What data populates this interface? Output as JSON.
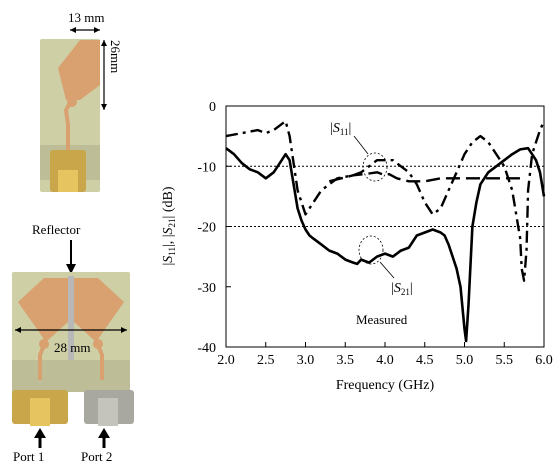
{
  "photos": {
    "top": {
      "width_label": "13 mm",
      "height_label": "26mm"
    },
    "bottom": {
      "reflector_label": "Reflector",
      "width_label": "28 mm",
      "port1_label": "Port 1",
      "port2_label": "Port 2"
    },
    "colors": {
      "substrate": "#cfcfa6",
      "copper": "#d9a070",
      "connector": "#c9a64a"
    }
  },
  "chart_data": {
    "type": "line",
    "xlabel": "Frequency (GHz)",
    "ylabel": "|S11|, |S21| (dB)",
    "xlim": [
      2.0,
      6.0
    ],
    "ylim": [
      -40,
      0
    ],
    "xticks": [
      "2.0",
      "2.5",
      "3.0",
      "3.5",
      "4.0",
      "4.5",
      "5.0",
      "5.5",
      "6.0"
    ],
    "yticks": [
      "0",
      "-10",
      "-20",
      "-30",
      "-40"
    ],
    "reference_lines": [
      -10,
      -20
    ],
    "annotations": {
      "s11": "|S11|",
      "s21": "|S21|",
      "note": "Measured"
    },
    "series": [
      {
        "key": "s21",
        "style": "solid",
        "x": [
          2.0,
          2.1,
          2.2,
          2.3,
          2.4,
          2.5,
          2.6,
          2.65,
          2.7,
          2.75,
          2.8,
          2.85,
          2.9,
          2.95,
          3.0,
          3.05,
          3.1,
          3.2,
          3.3,
          3.4,
          3.5,
          3.6,
          3.65,
          3.7,
          3.8,
          3.9,
          4.0,
          4.1,
          4.2,
          4.3,
          4.4,
          4.5,
          4.6,
          4.7,
          4.75,
          4.8,
          4.85,
          4.9,
          4.95,
          5.0,
          5.02,
          5.05,
          5.08,
          5.1,
          5.15,
          5.2,
          5.3,
          5.4,
          5.5,
          5.6,
          5.7,
          5.8,
          5.85,
          5.9,
          5.95,
          6.0
        ],
        "values": [
          -7,
          -8,
          -9.5,
          -10.5,
          -11,
          -12,
          -11,
          -10,
          -9,
          -8,
          -9,
          -13,
          -17,
          -19,
          -20.5,
          -21.5,
          -22,
          -23,
          -24,
          -24.5,
          -25.5,
          -26,
          -26.2,
          -25.5,
          -26,
          -25,
          -24.5,
          -25,
          -24,
          -23.5,
          -21.5,
          -21,
          -20.5,
          -21,
          -21.5,
          -23,
          -25,
          -27,
          -30,
          -37,
          -39,
          -33,
          -25,
          -20,
          -16,
          -13,
          -11,
          -10,
          -9,
          -8,
          -7.2,
          -7,
          -8,
          -9,
          -11,
          -15
        ]
      },
      {
        "key": "s11",
        "style": "dashdot",
        "x": [
          2.0,
          2.2,
          2.4,
          2.5,
          2.6,
          2.7,
          2.75,
          2.8,
          2.9,
          3.0,
          3.1,
          3.2,
          3.4,
          3.6,
          3.7,
          3.8,
          3.9,
          4.0,
          4.1,
          4.2,
          4.3,
          4.4,
          4.5,
          4.6,
          4.7,
          4.8,
          4.9,
          5.0,
          5.1,
          5.2,
          5.3,
          5.4,
          5.5,
          5.6,
          5.65,
          5.7,
          5.72,
          5.75,
          5.78,
          5.8,
          5.85,
          5.9,
          5.95,
          6.0
        ],
        "values": [
          -5,
          -4.5,
          -4,
          -4.5,
          -4,
          -3,
          -2.5,
          -5,
          -14,
          -18,
          -16,
          -14,
          -12,
          -11.5,
          -11,
          -10,
          -9,
          -9,
          -9,
          -10,
          -11,
          -13,
          -16,
          -18,
          -17,
          -14,
          -11,
          -8,
          -6,
          -5,
          -6,
          -8,
          -10,
          -14,
          -18,
          -22,
          -27,
          -29,
          -24,
          -14,
          -8,
          -6,
          -4,
          -2.5
        ]
      },
      {
        "key": "dashed",
        "style": "dashed",
        "x": [
          3.3,
          3.45,
          3.6,
          3.8,
          3.9,
          4.0,
          4.05,
          4.15,
          4.3,
          4.5,
          4.7,
          5.0,
          5.2,
          5.5,
          5.75
        ],
        "values": [
          -12.5,
          -12,
          -11.5,
          -11.2,
          -11,
          -11.5,
          -11.3,
          -12,
          -12.5,
          -12.5,
          -12,
          -12,
          -12,
          -12,
          -12
        ]
      }
    ]
  }
}
